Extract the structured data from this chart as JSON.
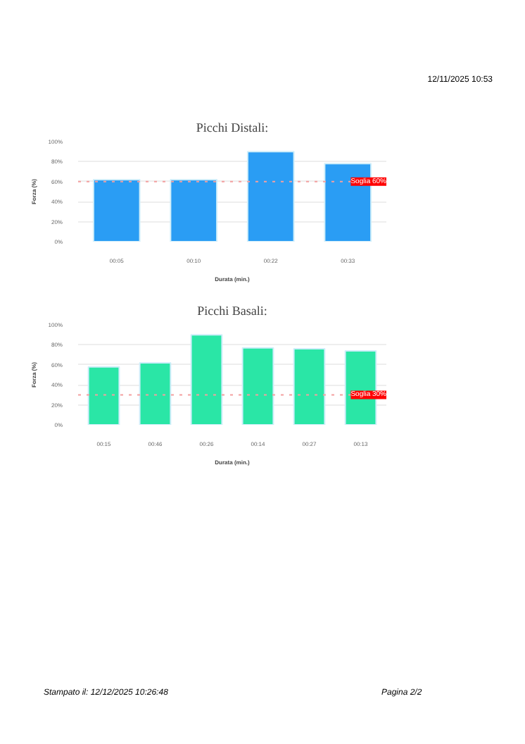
{
  "chart_data": [
    {
      "type": "bar",
      "title": "Picchi Distali:",
      "xlabel": "Durata (min.)",
      "ylabel": "Forza (%)",
      "categories": [
        "00:05",
        "00:10",
        "00:22",
        "00:33"
      ],
      "values": [
        62,
        62,
        90,
        78
      ],
      "color": "#2a9df4",
      "ylim": [
        0,
        100
      ],
      "yticks": [
        {
          "value": 0,
          "label": "0%"
        },
        {
          "value": 20,
          "label": "20%"
        },
        {
          "value": 40,
          "label": "40%"
        },
        {
          "value": 60,
          "label": "60%"
        },
        {
          "value": 80,
          "label": "80%"
        },
        {
          "value": 100,
          "label": "100%"
        }
      ],
      "grid": "y",
      "ref_lines": [
        {
          "axis": "y",
          "value": 60,
          "label": "Soglia 60%",
          "color": "#f4a0a0",
          "line_style": "dotted"
        }
      ],
      "annotations": [
        "12/11/2025 10:53"
      ]
    },
    {
      "type": "bar",
      "title": "Picchi Basali:",
      "xlabel": "Durata (min.)",
      "ylabel": "Forza (%)",
      "categories": [
        "00:15",
        "00:46",
        "00:26",
        "00:14",
        "00:27",
        "00:13"
      ],
      "values": [
        58,
        62,
        90,
        77,
        76,
        74
      ],
      "color": "#2ae6a6",
      "ylim": [
        0,
        100
      ],
      "yticks": [
        {
          "value": 0,
          "label": "0%"
        },
        {
          "value": 20,
          "label": "20%"
        },
        {
          "value": 40,
          "label": "40%"
        },
        {
          "value": 60,
          "label": "60%"
        },
        {
          "value": 80,
          "label": "80%"
        },
        {
          "value": 100,
          "label": "100%"
        }
      ],
      "grid": "y",
      "ref_lines": [
        {
          "axis": "y",
          "value": 30,
          "label": "Soglia 30%",
          "color": "#f4a0a0",
          "line_style": "dotted"
        }
      ],
      "annotations": [
        "Stampato il: 12/12/2025 10:26:48",
        "Pagina 2/2"
      ]
    }
  ]
}
